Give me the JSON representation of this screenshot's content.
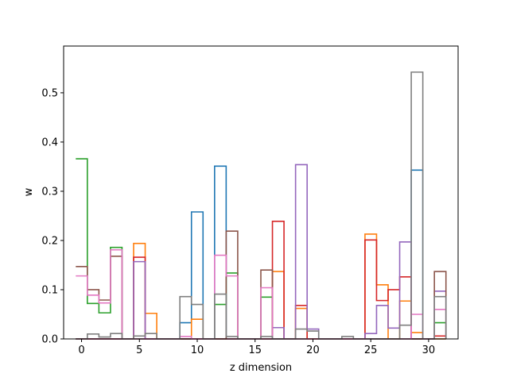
{
  "chart_data": {
    "type": "step",
    "title": "",
    "xlabel": "z dimension",
    "ylabel": "w",
    "xlim": [
      -1.55,
      32.55
    ],
    "ylim": [
      0,
      0.595
    ],
    "xticks": [
      0,
      5,
      10,
      15,
      20,
      25,
      30
    ],
    "yticks": [
      0.0,
      0.1,
      0.2,
      0.3,
      0.4,
      0.5
    ],
    "ytick_labels": [
      "0.0",
      "0.1",
      "0.2",
      "0.3",
      "0.4",
      "0.5"
    ],
    "x": [
      0,
      1,
      2,
      3,
      4,
      5,
      6,
      7,
      8,
      9,
      10,
      11,
      12,
      13,
      14,
      15,
      16,
      17,
      18,
      19,
      20,
      21,
      22,
      23,
      24,
      25,
      26,
      27,
      28,
      29,
      30,
      31
    ],
    "series": [
      {
        "color": "#1f77b4",
        "values": [
          0,
          0,
          0,
          0,
          0,
          0,
          0,
          0,
          0,
          0.033,
          0.258,
          0,
          0.351,
          0,
          0,
          0,
          0,
          0,
          0,
          0,
          0,
          0,
          0,
          0,
          0,
          0,
          0,
          0,
          0,
          0.343,
          0,
          0
        ]
      },
      {
        "color": "#ff7f0e",
        "values": [
          0,
          0,
          0,
          0,
          0,
          0.194,
          0.052,
          0,
          0,
          0,
          0.04,
          0,
          0,
          0,
          0,
          0,
          0,
          0.137,
          0,
          0.062,
          0,
          0,
          0,
          0,
          0,
          0.213,
          0.11,
          0,
          0.077,
          0.013,
          0,
          0
        ]
      },
      {
        "color": "#2ca02c",
        "values": [
          0.366,
          0.072,
          0.053,
          0.186,
          0,
          0,
          0,
          0,
          0,
          0,
          0,
          0,
          0.07,
          0.134,
          0,
          0,
          0.085,
          0,
          0,
          0,
          0,
          0,
          0,
          0,
          0,
          0,
          0,
          0,
          0,
          0,
          0,
          0.033
        ]
      },
      {
        "color": "#d62728",
        "values": [
          0,
          0,
          0,
          0,
          0,
          0.166,
          0,
          0,
          0,
          0,
          0,
          0,
          0,
          0,
          0,
          0,
          0,
          0.239,
          0,
          0.068,
          0,
          0,
          0,
          0,
          0,
          0.201,
          0.078,
          0.1,
          0.126,
          0,
          0,
          0.006
        ]
      },
      {
        "color": "#9467bd",
        "values": [
          0,
          0,
          0,
          0,
          0,
          0.157,
          0,
          0,
          0,
          0,
          0,
          0,
          0,
          0,
          0,
          0,
          0,
          0.023,
          0,
          0.354,
          0.02,
          0,
          0,
          0,
          0,
          0.011,
          0.068,
          0.022,
          0.197,
          0,
          0,
          0.097
        ]
      },
      {
        "color": "#8c564b",
        "values": [
          0.147,
          0.1,
          0.079,
          0.168,
          0,
          0,
          0,
          0,
          0,
          0,
          0,
          0,
          0,
          0.219,
          0,
          0,
          0.14,
          0,
          0,
          0,
          0,
          0,
          0,
          0,
          0,
          0,
          0,
          0,
          0,
          0,
          0,
          0.137
        ]
      },
      {
        "color": "#e377c2",
        "values": [
          0.128,
          0.089,
          0.073,
          0.181,
          0,
          0,
          0,
          0,
          0,
          0.005,
          0,
          0,
          0.17,
          0.128,
          0,
          0,
          0.104,
          0,
          0,
          0,
          0,
          0,
          0,
          0,
          0,
          0,
          0,
          0,
          0,
          0.05,
          0,
          0.06
        ]
      },
      {
        "color": "#7f7f7f",
        "values": [
          0,
          0.01,
          0.004,
          0.011,
          0,
          0.006,
          0.011,
          0,
          0,
          0.086,
          0.07,
          0,
          0.091,
          0.005,
          0,
          0,
          0.005,
          0,
          0,
          0.02,
          0.016,
          0,
          0,
          0.005,
          0,
          0,
          0,
          0,
          0.028,
          0.542,
          0,
          0.086
        ]
      }
    ]
  }
}
